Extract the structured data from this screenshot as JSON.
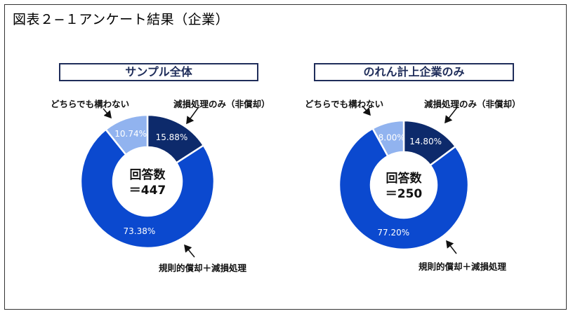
{
  "title": "図表２−１アンケート結果（企業）",
  "colors": {
    "impairment_only": "#0d2a6b",
    "amortization_plus_impairment": "#0b49cf",
    "either": "#91b3ef"
  },
  "chart_data": [
    {
      "type": "pie",
      "subtype": "donut",
      "title": "サンプル全体",
      "center_label": "回答数",
      "center_value": "＝447",
      "slices": [
        {
          "label": "減損処理のみ（非償却）",
          "value": 15.88,
          "display": "15.88%",
          "color": "#0d2a6b"
        },
        {
          "label": "規則的償却＋減損処理",
          "value": 73.38,
          "display": "73.38%",
          "color": "#0b49cf"
        },
        {
          "label": "どちらでも構わない",
          "value": 10.74,
          "display": "10.74%",
          "color": "#91b3ef"
        }
      ]
    },
    {
      "type": "pie",
      "subtype": "donut",
      "title": "のれん計上企業のみ",
      "center_label": "回答数",
      "center_value": "＝250",
      "slices": [
        {
          "label": "減損処理のみ（非償却）",
          "value": 14.8,
          "display": "14.80%",
          "color": "#0d2a6b"
        },
        {
          "label": "規則的償却＋減損処理",
          "value": 77.2,
          "display": "77.20%",
          "color": "#0b49cf"
        },
        {
          "label": "どちらでも構わない",
          "value": 8.0,
          "display": "8.00%",
          "color": "#91b3ef"
        }
      ]
    }
  ]
}
